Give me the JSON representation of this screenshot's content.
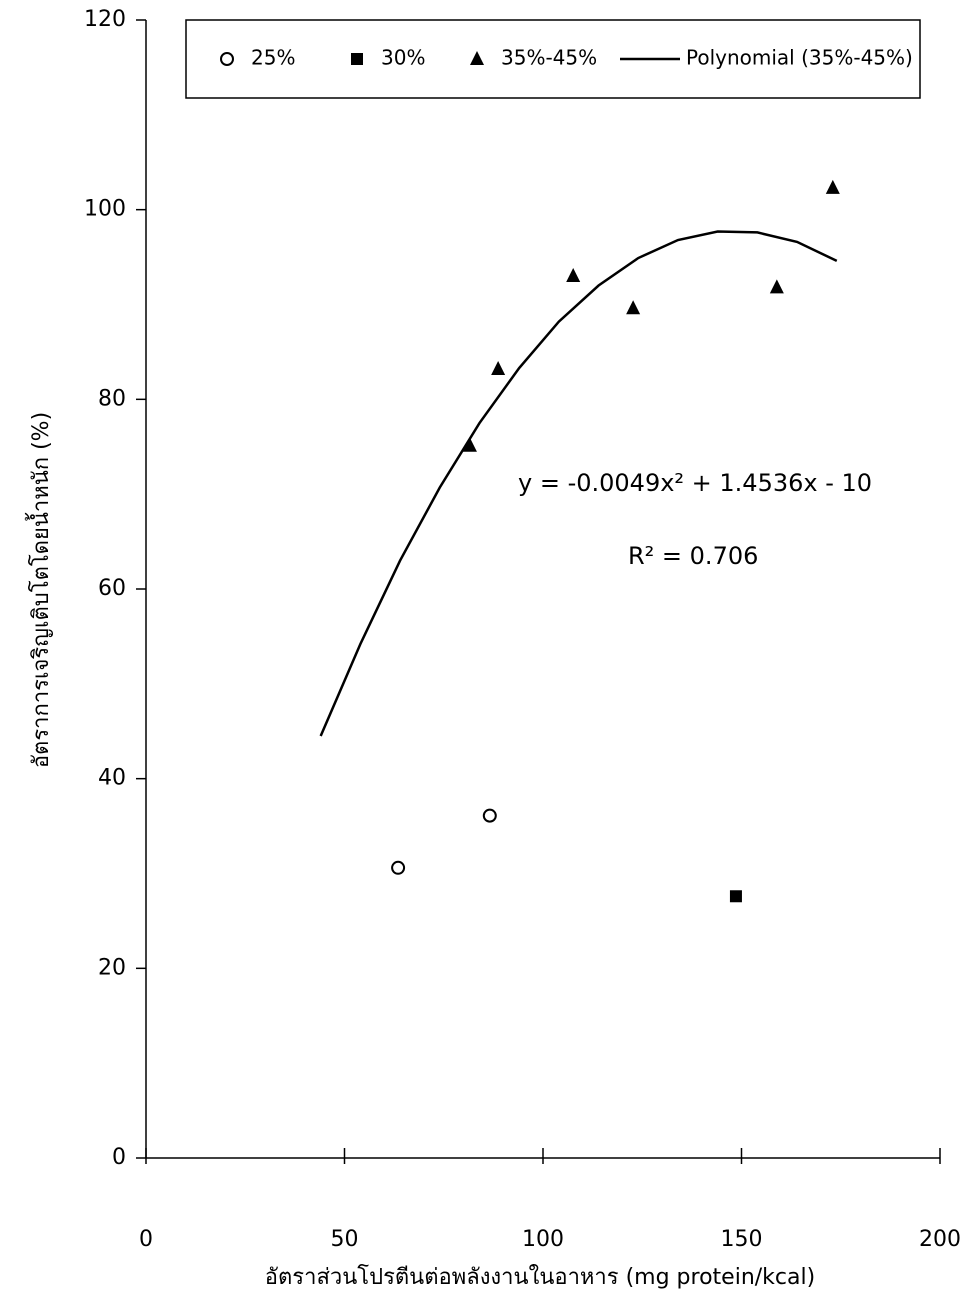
{
  "chart_data": {
    "type": "scatter",
    "x_label": "อัตราส่วนโปรตีนต่อพลังงานในอาหาร (mg protein/kcal)",
    "y_label": "อัตราการเจริญเติบโตโดยน้ำหนัก (%)",
    "annotations": [
      "y = -0.0049x² + 1.4536x - 10",
      "R² = 0.706"
    ],
    "xlim": [
      0,
      200
    ],
    "xticks": [
      0,
      50,
      100,
      150,
      200
    ],
    "ylim": [
      0,
      120
    ],
    "yticks": [
      0,
      20,
      40,
      60,
      80,
      100,
      120
    ],
    "grid": false,
    "legend": "top",
    "series": [
      {
        "name": "25%",
        "color": "#000000",
        "marker": "circle-open",
        "x": [
          63.5,
          86.6
        ],
        "values": [
          30.6,
          36.1
        ]
      },
      {
        "name": "30%",
        "color": "#000000",
        "marker": "square",
        "x": [
          148.6
        ],
        "values": [
          27.6
        ]
      },
      {
        "name": "35%-45%",
        "color": "#000000",
        "marker": "triangle",
        "x": [
          81.6,
          88.7,
          107.6,
          122.7,
          158.9,
          173.0
        ],
        "values": [
          75.1,
          83.2,
          93.0,
          89.6,
          91.8,
          102.3
        ]
      },
      {
        "name": "Polynomial (35%-45%)",
        "color": "#000000",
        "marker": "line",
        "x": [
          44,
          54,
          64,
          74,
          84,
          94,
          104,
          114,
          124,
          134,
          144,
          154,
          164,
          174
        ],
        "values": [
          44.5,
          54.2,
          63.0,
          70.7,
          77.5,
          83.3,
          88.2,
          92.0,
          94.9,
          96.8,
          97.7,
          97.6,
          96.6,
          94.6
        ]
      }
    ]
  }
}
